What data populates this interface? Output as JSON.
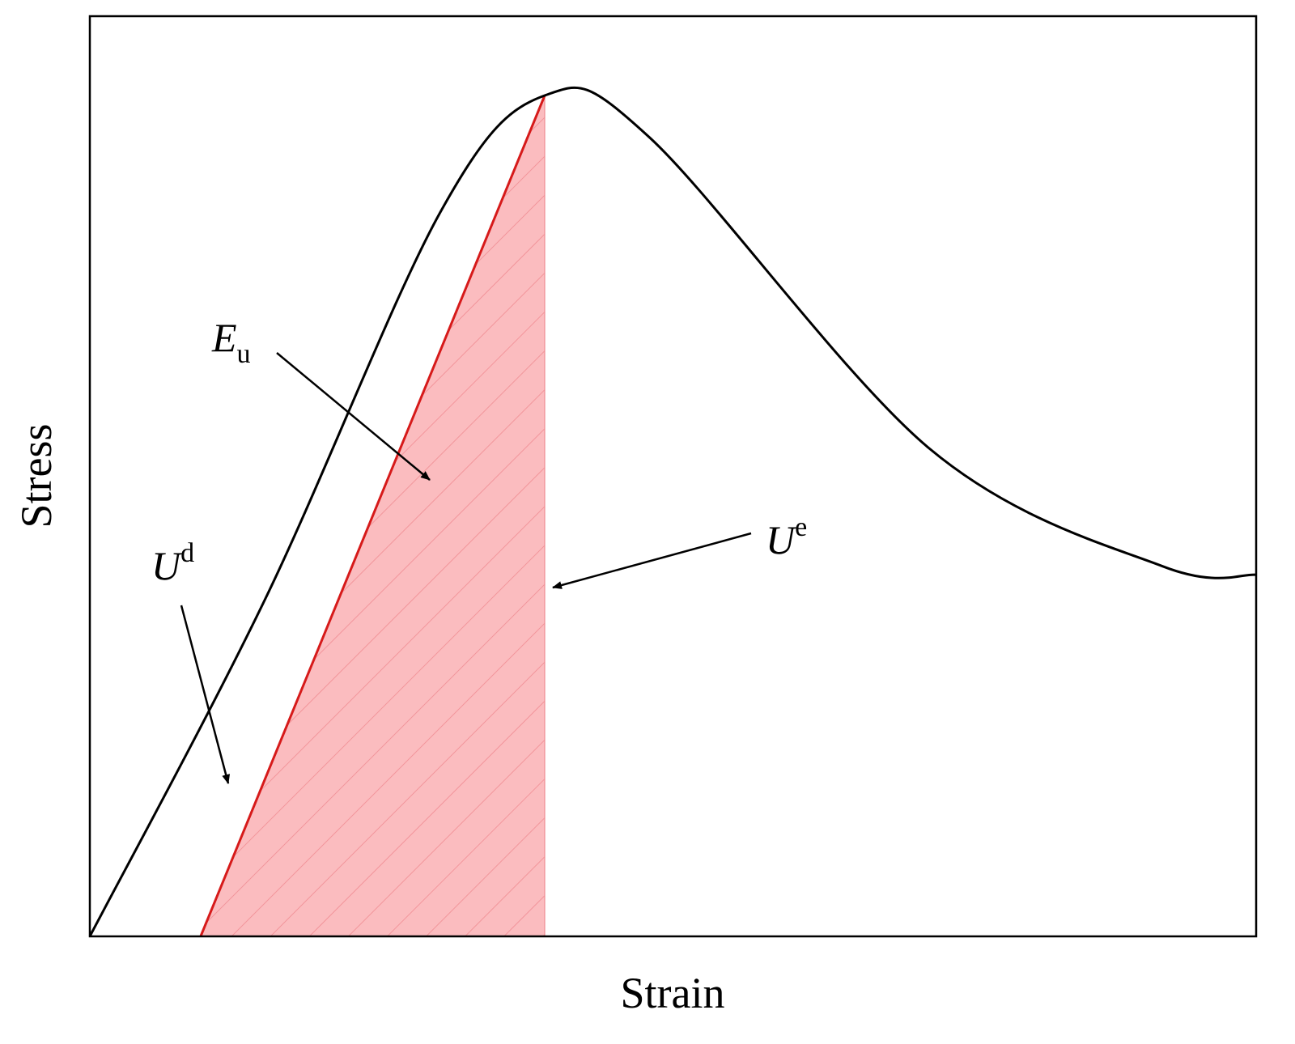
{
  "chart_data": {
    "type": "line",
    "title": "",
    "xlabel": "Strain",
    "ylabel": "Stress",
    "ticks": "none",
    "grid": false,
    "colors": {
      "curve": "#000000",
      "unloading_line": "#d61a1a",
      "elastic_region_fill": "#fbbcbf",
      "hatch": "#f08c92"
    },
    "series": [
      {
        "curve_points": [
          [
            0,
            0
          ],
          [
            0.15,
            0.4
          ],
          [
            0.3,
            0.86
          ],
          [
            0.39,
            1.0
          ],
          [
            0.48,
            0.95
          ],
          [
            0.72,
            0.58
          ],
          [
            0.92,
            0.44
          ],
          [
            1.0,
            0.43
          ]
        ]
      }
    ],
    "peak": {
      "x": 0.39,
      "y": 1.0
    },
    "unloading_line": {
      "from": {
        "x": 0.095,
        "y": 0
      },
      "to": {
        "x": 0.39,
        "y": 1.0
      }
    },
    "annotations": [
      {
        "id": "Eu",
        "main": "E",
        "sub": "u",
        "sup": "",
        "target": "unloading_line"
      },
      {
        "id": "Ue",
        "main": "U",
        "sub": "",
        "sup": "e",
        "target": "elastic_region"
      },
      {
        "id": "Ud",
        "main": "U",
        "sub": "",
        "sup": "d",
        "target": "dissipated_region"
      }
    ]
  }
}
